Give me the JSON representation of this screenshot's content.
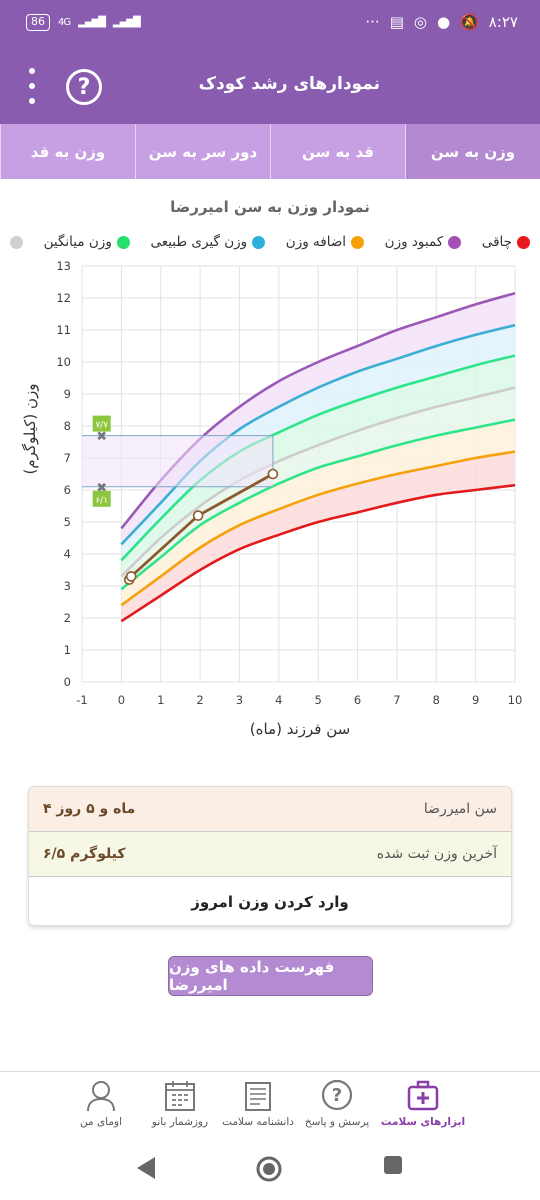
{
  "status_bar": {
    "battery": "86",
    "network": "4G",
    "time": "۸:۲۷",
    "more": "···"
  },
  "app_bar": {
    "title": "نمودارهای رشد کودک",
    "help_label": "?"
  },
  "tabs": [
    {
      "label": "وزن به سن",
      "active": true
    },
    {
      "label": "قد به سن",
      "active": false
    },
    {
      "label": "دور سر به سن",
      "active": false
    },
    {
      "label": "وزن به قد",
      "active": false
    }
  ],
  "chart_title": "نمودار وزن به سن امیررضا",
  "legend": [
    {
      "label": "چاقی",
      "color": "#e8171b"
    },
    {
      "label": "کمبود وزن",
      "color": "#a64fb5"
    },
    {
      "label": "اضافه وزن",
      "color": "#f7a10a"
    },
    {
      "label": "وزن گیری طبیعی",
      "color": "#2bb0d6"
    },
    {
      "label": "وزن میانگین",
      "color": "#23e06b"
    },
    {
      "label": "",
      "color": "#cfcfcf"
    }
  ],
  "legend_final_label": "وزن میانگین",
  "chart_data": {
    "type": "line",
    "xlabel": "سن فرزند (ماه)",
    "ylabel": "وزن (کیلوگرم)",
    "xlim": [
      -1,
      10
    ],
    "ylim": [
      0,
      13
    ],
    "x_ticks": [
      "-1",
      "0",
      "1",
      "2",
      "3",
      "4",
      "5",
      "6",
      "7",
      "8",
      "9",
      "10"
    ],
    "y_ticks": [
      "0",
      "1",
      "2",
      "3",
      "4",
      "5",
      "6",
      "7",
      "8",
      "9",
      "10",
      "11",
      "12",
      "13"
    ],
    "x": [
      0,
      1,
      2,
      3,
      4,
      5,
      6,
      7,
      8,
      9,
      10
    ],
    "series": [
      {
        "color": "#9b59b6",
        "values": [
          4.8,
          6.3,
          7.6,
          8.6,
          9.4,
          10.0,
          10.5,
          11.0,
          11.4,
          11.8,
          12.15
        ]
      },
      {
        "color": "#3aafd2",
        "values": [
          4.3,
          5.6,
          6.9,
          7.9,
          8.6,
          9.2,
          9.7,
          10.1,
          10.5,
          10.85,
          11.15
        ]
      },
      {
        "color": "#2ee58a",
        "values": [
          3.8,
          5.1,
          6.3,
          7.2,
          7.8,
          8.35,
          8.8,
          9.2,
          9.55,
          9.9,
          10.2
        ]
      },
      {
        "color": "#cccccc",
        "values": [
          3.3,
          4.5,
          5.5,
          6.3,
          6.9,
          7.4,
          7.85,
          8.25,
          8.6,
          8.9,
          9.2
        ]
      },
      {
        "color": "#2ee58a",
        "values": [
          2.9,
          3.9,
          4.9,
          5.6,
          6.2,
          6.7,
          7.05,
          7.4,
          7.7,
          7.95,
          8.2
        ]
      },
      {
        "color": "#f5a10a",
        "values": [
          2.4,
          3.3,
          4.2,
          4.9,
          5.4,
          5.85,
          6.2,
          6.5,
          6.75,
          7.0,
          7.2
        ]
      },
      {
        "color": "#e31a1c",
        "values": [
          1.9,
          2.7,
          3.5,
          4.15,
          4.6,
          5.0,
          5.3,
          5.6,
          5.85,
          6.0,
          6.15
        ]
      }
    ],
    "band_fills": [
      "#f3e3f8",
      "#dff2fb",
      "#d9f8e6",
      "#e6f6ea",
      "#fdf1d9",
      "#fddada"
    ],
    "child_series": {
      "color": "#8b5a2b",
      "points": [
        [
          0.2,
          3.2
        ],
        [
          0.25,
          3.3
        ],
        [
          1.95,
          5.2
        ],
        [
          3.85,
          6.5
        ]
      ]
    },
    "reference": {
      "x_at": 3.85,
      "y_high": 7.7,
      "y_low": 6.1,
      "label_high": "۷/۷",
      "label_low": "۶/۱"
    }
  },
  "info": {
    "age_label": "سن امیررضا",
    "age_value": "۴ ماه و ۵ روز",
    "weight_label": "آخرین وزن ثبت شده",
    "weight_value": "۶/۵ کیلوگرم",
    "enter_weight": "وارد کردن وزن امروز"
  },
  "list_button": "فهرست داده های وزن امیررضا",
  "bottom_nav": [
    {
      "label": "ابزارهای سلامت",
      "icon": "medkit-icon",
      "active": true
    },
    {
      "label": "پرسش و پاسخ",
      "icon": "question-bubble-icon",
      "active": false
    },
    {
      "label": "دانشنامه سلامت",
      "icon": "encyclopedia-icon",
      "active": false
    },
    {
      "label": "روزشمار بانو",
      "icon": "calendar-icon",
      "active": false
    },
    {
      "label": "اومای من",
      "icon": "profile-icon",
      "active": false
    }
  ]
}
